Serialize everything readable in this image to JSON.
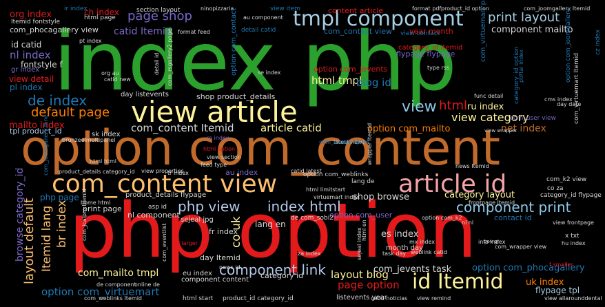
{
  "cloud": {
    "words": [
      {
        "text": "index php",
        "color": "#2ca02c"
      },
      {
        "text": "option com_content",
        "color": "#c06a2b"
      },
      {
        "text": "php option",
        "color": "#e31a1c"
      },
      {
        "text": "view article",
        "color": "#fdf19a"
      },
      {
        "text": "com_content view",
        "color": "#fdbf6f"
      },
      {
        "text": "article id",
        "color": "#f4a3a8"
      },
      {
        "text": "tmpl component",
        "color": "#a6cee3"
      },
      {
        "text": "php view",
        "color": "#b2c7e8"
      },
      {
        "text": "index html",
        "color": "#b2c7e8"
      },
      {
        "text": "id Itemid",
        "color": "#fdf19a"
      },
      {
        "text": "component print",
        "color": "#8ec8e8"
      },
      {
        "text": "component link",
        "color": "#b2c7e8"
      },
      {
        "text": "default page",
        "color": "#ff7f00"
      },
      {
        "text": "de index",
        "color": "#1f78b4"
      },
      {
        "text": "page shop",
        "color": "#7b68c9"
      },
      {
        "text": "print layout",
        "color": "#a6cee3"
      },
      {
        "text": "com_content Itemid",
        "color": "#d8d8d8"
      },
      {
        "text": "view category",
        "color": "#fdf19a"
      },
      {
        "text": "article catid",
        "color": "#fdf19a"
      },
      {
        "text": "html tmpl",
        "color": "#fdf19a"
      },
      {
        "text": "option com_virtuemart",
        "color": "#1f78b4"
      },
      {
        "text": "layout blog",
        "color": "#fdf19a"
      },
      {
        "text": "layout default",
        "color": "#fdbf6f"
      },
      {
        "text": "Itemid lang",
        "color": "#fdbf6f"
      },
      {
        "text": "br index",
        "color": "#fdbf6f"
      },
      {
        "text": "co uk",
        "color": "#fdf19a"
      },
      {
        "text": "html",
        "color": "#e31a1c"
      },
      {
        "text": "org index",
        "color": "#e31a1c"
      },
      {
        "text": "nl index",
        "color": "#7b68c9"
      },
      {
        "text": "ch index",
        "color": "#e31a1c"
      },
      {
        "text": "component mailto",
        "color": "#d8d8d8"
      },
      {
        "text": "blog id",
        "color": "#1f78b4"
      },
      {
        "text": "ru index",
        "color": "#fdf19a"
      },
      {
        "text": "net index",
        "color": "#c06a2b"
      },
      {
        "text": "page option",
        "color": "#e31a1c"
      },
      {
        "text": "option com_mailto",
        "color": "#ff7f00"
      },
      {
        "text": "shop browse",
        "color": "#d8d8d8"
      },
      {
        "text": "category layout",
        "color": "#fdf19a"
      },
      {
        "text": "com_mailto tmpl",
        "color": "#fdf19a"
      },
      {
        "text": "catid Itemid",
        "color": "#7b68c9"
      },
      {
        "text": "view",
        "color": "#8ec8e8"
      },
      {
        "text": "mailto index",
        "color": "#e31a1c"
      },
      {
        "text": "es index",
        "color": "#d8d8d8"
      },
      {
        "text": "com_jevents task",
        "color": "#d8d8d8"
      },
      {
        "text": "option com_phocagallery",
        "color": "#1f78b4"
      },
      {
        "text": "uk index",
        "color": "#ff7f00"
      },
      {
        "text": "flypage tpl",
        "color": "#a6cee3"
      },
      {
        "text": "com_phocagallery view",
        "color": "#d8d8d8"
      },
      {
        "text": "id catid",
        "color": "#d8d8d8"
      },
      {
        "text": "fontstyle f",
        "color": "#d8d8d8"
      },
      {
        "text": "view detail",
        "color": "#e31a1c"
      },
      {
        "text": "pl index",
        "color": "#1f78b4"
      },
      {
        "text": "gr index",
        "color": "#7b68c9"
      },
      {
        "text": "tpl product_id",
        "color": "#b2c7e8"
      },
      {
        "text": "print page",
        "color": "#d8d8d8"
      },
      {
        "text": "nl component",
        "color": "#d8d8d8"
      },
      {
        "text": "option com_user",
        "color": "#7b68c9"
      },
      {
        "text": "fr index",
        "color": "#d8d8d8"
      },
      {
        "text": "day Itemid",
        "color": "#d8d8d8"
      },
      {
        "text": "eu index",
        "color": "#d8d8d8"
      },
      {
        "text": "component content",
        "color": "#d8d8d8"
      },
      {
        "text": "category id",
        "color": "#d8d8d8"
      },
      {
        "text": "product_details flypage",
        "color": "#d8d8d8"
      },
      {
        "text": "browse category_id",
        "color": "#7b68c9"
      },
      {
        "text": "php page",
        "color": "#1f78b4"
      },
      {
        "text": "month day",
        "color": "#d8d8d8"
      },
      {
        "text": "contact id",
        "color": "#1f78b4"
      },
      {
        "text": "lang en",
        "color": "#d8d8d8"
      },
      {
        "text": "shop product_details",
        "color": "#d8d8d8"
      },
      {
        "text": "content article",
        "color": "#e31a1c"
      },
      {
        "text": "com_contact view",
        "color": "#1f78b4"
      },
      {
        "text": "year month",
        "color": "#e31a1c"
      },
      {
        "text": "option com_jevents",
        "color": "#e31a1c"
      },
      {
        "text": "flypage flypage",
        "color": "#7b68c9"
      },
      {
        "text": "category_id Itemid",
        "color": "#e31a1c"
      },
      {
        "text": "detail catid",
        "color": "#1f78b4"
      },
      {
        "text": "view contact",
        "color": "#1f78b4"
      },
      {
        "text": "latest news",
        "color": "#d8d8d8"
      },
      {
        "text": "section layout",
        "color": "#d8d8d8"
      },
      {
        "text": "Itemid fontstyle",
        "color": "#d8d8d8"
      },
      {
        "text": "ir index",
        "color": "#1f78b4"
      },
      {
        "text": "html page",
        "color": "#d8d8d8"
      },
      {
        "text": "pt index",
        "color": "#d8d8d8"
      },
      {
        "text": "day listevents",
        "color": "#d8d8d8"
      },
      {
        "text": "sk index",
        "color": "#d8d8d8"
      },
      {
        "text": "ro index",
        "color": "#7b68c9"
      },
      {
        "text": "html option",
        "color": "#e31a1c"
      },
      {
        "text": "view section",
        "color": "#d8d8d8"
      },
      {
        "text": "feed type",
        "color": "#d8d8d8"
      },
      {
        "text": "au index",
        "color": "#7b68c9"
      },
      {
        "text": "catid latest",
        "color": "#d8d8d8"
      },
      {
        "text": "com_content print",
        "color": "#1f78b4"
      },
      {
        "text": "option com_weblinks",
        "color": "#d8d8d8"
      },
      {
        "text": "com_user view",
        "color": "#7b68c9"
      },
      {
        "text": "com_k2 view",
        "color": "#d8d8d8"
      },
      {
        "text": "co za",
        "color": "#d8d8d8"
      },
      {
        "text": "category_id flypage",
        "color": "#d8d8d8"
      },
      {
        "text": "view frontpage",
        "color": "#d8d8d8"
      },
      {
        "text": "sejeal jpg",
        "color": "#d8d8d8"
      },
      {
        "text": "asp id",
        "color": "#d8d8d8"
      },
      {
        "text": "de com_sobi2",
        "color": "#d8d8d8"
      },
      {
        "text": "weblink catid",
        "color": "#d8d8d8"
      },
      {
        "text": "option com_k2",
        "color": "#d8d8d8"
      },
      {
        "text": "hu index",
        "color": "#d8d8d8"
      },
      {
        "text": "mx index",
        "color": "#d8d8d8"
      },
      {
        "text": "za index",
        "color": "#d8d8d8"
      },
      {
        "text": "news id",
        "color": "#d8d8d8"
      },
      {
        "text": "task day",
        "color": "#d8d8d8"
      },
      {
        "text": "listevents year",
        "color": "#d8d8d8"
      },
      {
        "text": "product_id category_id",
        "color": "#d8d8d8"
      },
      {
        "text": "html start",
        "color": "#d8d8d8"
      },
      {
        "text": "com_weblinks Itemid",
        "color": "#d8d8d8"
      },
      {
        "text": "catid noticias",
        "color": "#d8d8d8"
      },
      {
        "text": "view remind",
        "color": "#d8d8d8"
      },
      {
        "text": "view allarounddental",
        "color": "#d8d8d8"
      },
      {
        "text": "x txt",
        "color": "#d8d8d8"
      },
      {
        "text": "info index",
        "color": "#d8d8d8"
      },
      {
        "text": "nl nl",
        "color": "#d8d8d8"
      },
      {
        "text": "html limitstart",
        "color": "#d8d8d8"
      },
      {
        "text": "virtuemart index",
        "color": "#d8d8d8"
      },
      {
        "text": "f larger",
        "color": "#e31a1c"
      },
      {
        "text": "f smaller",
        "color": "#e31a1c"
      },
      {
        "text": "online de",
        "color": "#d8d8d8"
      },
      {
        "text": "de component",
        "color": "#d8d8d8"
      },
      {
        "text": "home html",
        "color": "#d8d8d8"
      },
      {
        "text": "lang de",
        "color": "#d8d8d8"
      },
      {
        "text": "view item",
        "color": "#1f78b4"
      },
      {
        "text": "au component",
        "color": "#d8d8d8"
      },
      {
        "text": "format pdf",
        "color": "#d8d8d8"
      },
      {
        "text": "product_id option",
        "color": "#d8d8d8"
      },
      {
        "text": "com_joomgallery Itemid",
        "color": "#d8d8d8"
      },
      {
        "text": "ninopizzaria",
        "color": "#d8d8d8"
      },
      {
        "text": "type rss",
        "color": "#d8d8d8"
      },
      {
        "text": "format feed",
        "color": "#d8d8d8"
      },
      {
        "text": "se index",
        "color": "#d8d8d8"
      },
      {
        "text": "org au",
        "color": "#d8d8d8"
      },
      {
        "text": "catid new",
        "color": "#d8d8d8"
      },
      {
        "text": "func detail",
        "color": "#d8d8d8"
      },
      {
        "text": "day date",
        "color": "#d8d8d8"
      },
      {
        "text": "cms index",
        "color": "#d8d8d8"
      },
      {
        "text": "view wrapper",
        "color": "#d8d8d8"
      },
      {
        "text": "com_wrapper view",
        "color": "#d8d8d8"
      },
      {
        "text": "gov gr",
        "color": "#d8d8d8"
      },
      {
        "text": "news Itemid",
        "color": "#d8d8d8"
      },
      {
        "text": "frontpage Itemid",
        "color": "#d8d8d8"
      },
      {
        "text": "brunzeelmultipanel",
        "color": "#d8d8d8"
      },
      {
        "text": "tr index",
        "color": "#d8d8d8"
      },
      {
        "text": "view properties",
        "color": "#d8d8d8"
      },
      {
        "text": "product_details category_id",
        "color": "#d8d8d8"
      },
      {
        "text": "html html",
        "color": "#d8d8d8"
      },
      {
        "text": "option com_contact",
        "color": "#1f78b4"
      },
      {
        "text": "com_virtuemart page",
        "color": "#1f78b4"
      },
      {
        "text": "category_id option",
        "color": "#1f78b4"
      },
      {
        "text": "option com_joomgallery",
        "color": "#1f78b4"
      },
      {
        "text": "com_rsgallery2 page",
        "color": "#d8d8d8"
      },
      {
        "text": "com_virtuemart Itemid",
        "color": "#d8d8d8"
      },
      {
        "text": "portal index",
        "color": "#1f78b4"
      },
      {
        "text": "detail id",
        "color": "#d8d8d8"
      },
      {
        "text": "cz index",
        "color": "#1f78b4"
      },
      {
        "text": "wrapper Itemid",
        "color": "#d8d8d8"
      },
      {
        "text": "com_jcalpro Itemid",
        "color": "#d8d8d8"
      },
      {
        "text": "com_joomgallery func",
        "color": "#1f78b4"
      },
      {
        "text": "html en",
        "color": "#d8d8d8"
      },
      {
        "text": "com_eventlist",
        "color": "#d8d8d8"
      },
      {
        "text": "sejeal index",
        "color": "#d8d8d8"
      }
    ]
  }
}
